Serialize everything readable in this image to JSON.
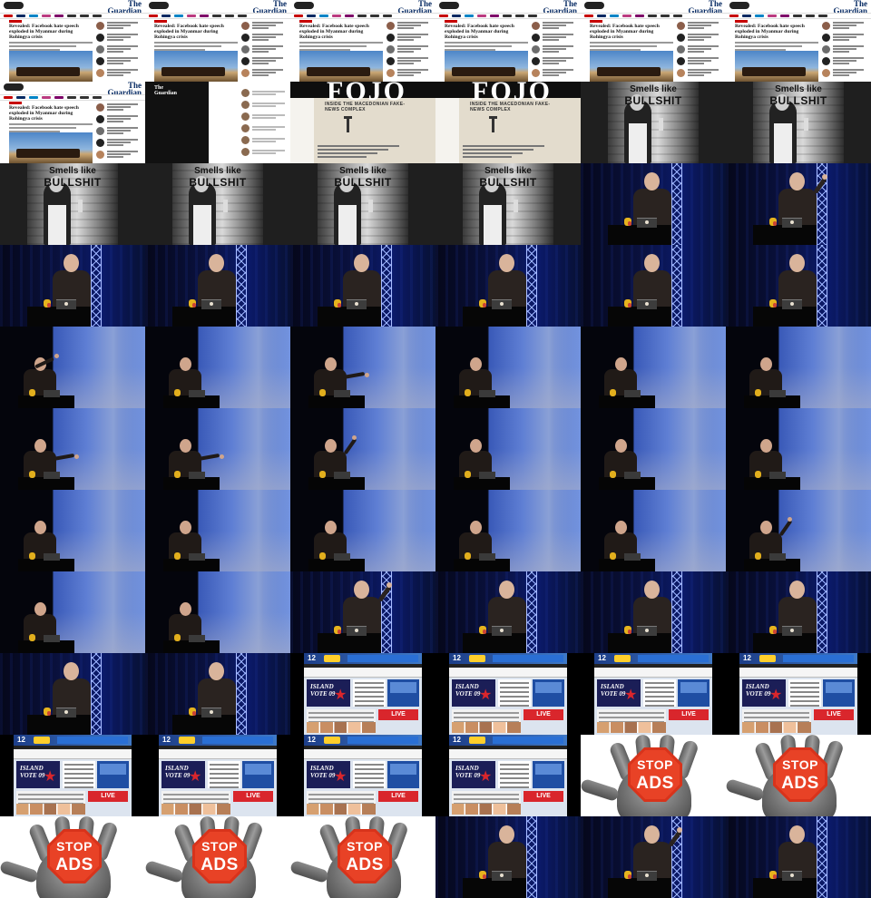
{
  "contact_sheet": {
    "columns": 6,
    "rows": 11,
    "texts": {
      "guardian_masthead_line1": "The",
      "guardian_masthead_line2": "Guardian",
      "guardian_headline": "Revealed: Facebook hate speech exploded in Myanmar during Rohingya crisis",
      "fojo_title": "FOJO",
      "fojo_subtitle": "INSIDE THE MACEDONIAN FAKE-NEWS COMPLEX",
      "bullshit_line1": "Smells like",
      "bullshit_line2": "BULLSHIT",
      "news_channel": "12",
      "island_vote": "ISLAND VOTE 09",
      "live_label": "LIVE",
      "stop_word": "STOP",
      "ads_word": "ADS"
    },
    "frames": [
      {
        "kind": "guardian-article"
      },
      {
        "kind": "guardian-article"
      },
      {
        "kind": "guardian-article"
      },
      {
        "kind": "guardian-article"
      },
      {
        "kind": "guardian-article"
      },
      {
        "kind": "guardian-article"
      },
      {
        "kind": "guardian-article"
      },
      {
        "kind": "guardian-dark"
      },
      {
        "kind": "fojo"
      },
      {
        "kind": "fojo"
      },
      {
        "kind": "bullshit"
      },
      {
        "kind": "bullshit"
      },
      {
        "kind": "bullshit"
      },
      {
        "kind": "bullshit"
      },
      {
        "kind": "bullshit"
      },
      {
        "kind": "bullshit"
      },
      {
        "kind": "stage",
        "pose": "down"
      },
      {
        "kind": "stage",
        "pose": "raise"
      },
      {
        "kind": "stage",
        "pose": "down"
      },
      {
        "kind": "stage",
        "pose": "down"
      },
      {
        "kind": "stage",
        "pose": "down"
      },
      {
        "kind": "stage",
        "pose": "down"
      },
      {
        "kind": "stage",
        "pose": "down"
      },
      {
        "kind": "stage",
        "pose": "down"
      },
      {
        "kind": "screen",
        "pose": "up"
      },
      {
        "kind": "screen",
        "pose": "down"
      },
      {
        "kind": "screen",
        "pose": "point"
      },
      {
        "kind": "screen",
        "pose": "down"
      },
      {
        "kind": "screen",
        "pose": "down"
      },
      {
        "kind": "screen",
        "pose": "down"
      },
      {
        "kind": "screen",
        "pose": "point"
      },
      {
        "kind": "screen",
        "pose": "point"
      },
      {
        "kind": "screen",
        "pose": "raise"
      },
      {
        "kind": "screen",
        "pose": "down"
      },
      {
        "kind": "screen",
        "pose": "down"
      },
      {
        "kind": "screen",
        "pose": "down"
      },
      {
        "kind": "screen",
        "pose": "down"
      },
      {
        "kind": "screen",
        "pose": "down"
      },
      {
        "kind": "screen",
        "pose": "down"
      },
      {
        "kind": "screen",
        "pose": "down"
      },
      {
        "kind": "screen",
        "pose": "down"
      },
      {
        "kind": "screen",
        "pose": "raise"
      },
      {
        "kind": "screen",
        "pose": "down"
      },
      {
        "kind": "screen",
        "pose": "down"
      },
      {
        "kind": "stage",
        "pose": "raise"
      },
      {
        "kind": "stage",
        "pose": "down"
      },
      {
        "kind": "stage",
        "pose": "down"
      },
      {
        "kind": "stage",
        "pose": "down"
      },
      {
        "kind": "stage",
        "pose": "down"
      },
      {
        "kind": "stage",
        "pose": "down"
      },
      {
        "kind": "news"
      },
      {
        "kind": "news"
      },
      {
        "kind": "news"
      },
      {
        "kind": "news"
      },
      {
        "kind": "news"
      },
      {
        "kind": "news"
      },
      {
        "kind": "news"
      },
      {
        "kind": "news"
      },
      {
        "kind": "stop"
      },
      {
        "kind": "stop"
      },
      {
        "kind": "stop"
      },
      {
        "kind": "stop"
      },
      {
        "kind": "stop"
      },
      {
        "kind": "stage",
        "pose": "down"
      },
      {
        "kind": "stage",
        "pose": "raise"
      },
      {
        "kind": "stage",
        "pose": "down"
      }
    ]
  }
}
